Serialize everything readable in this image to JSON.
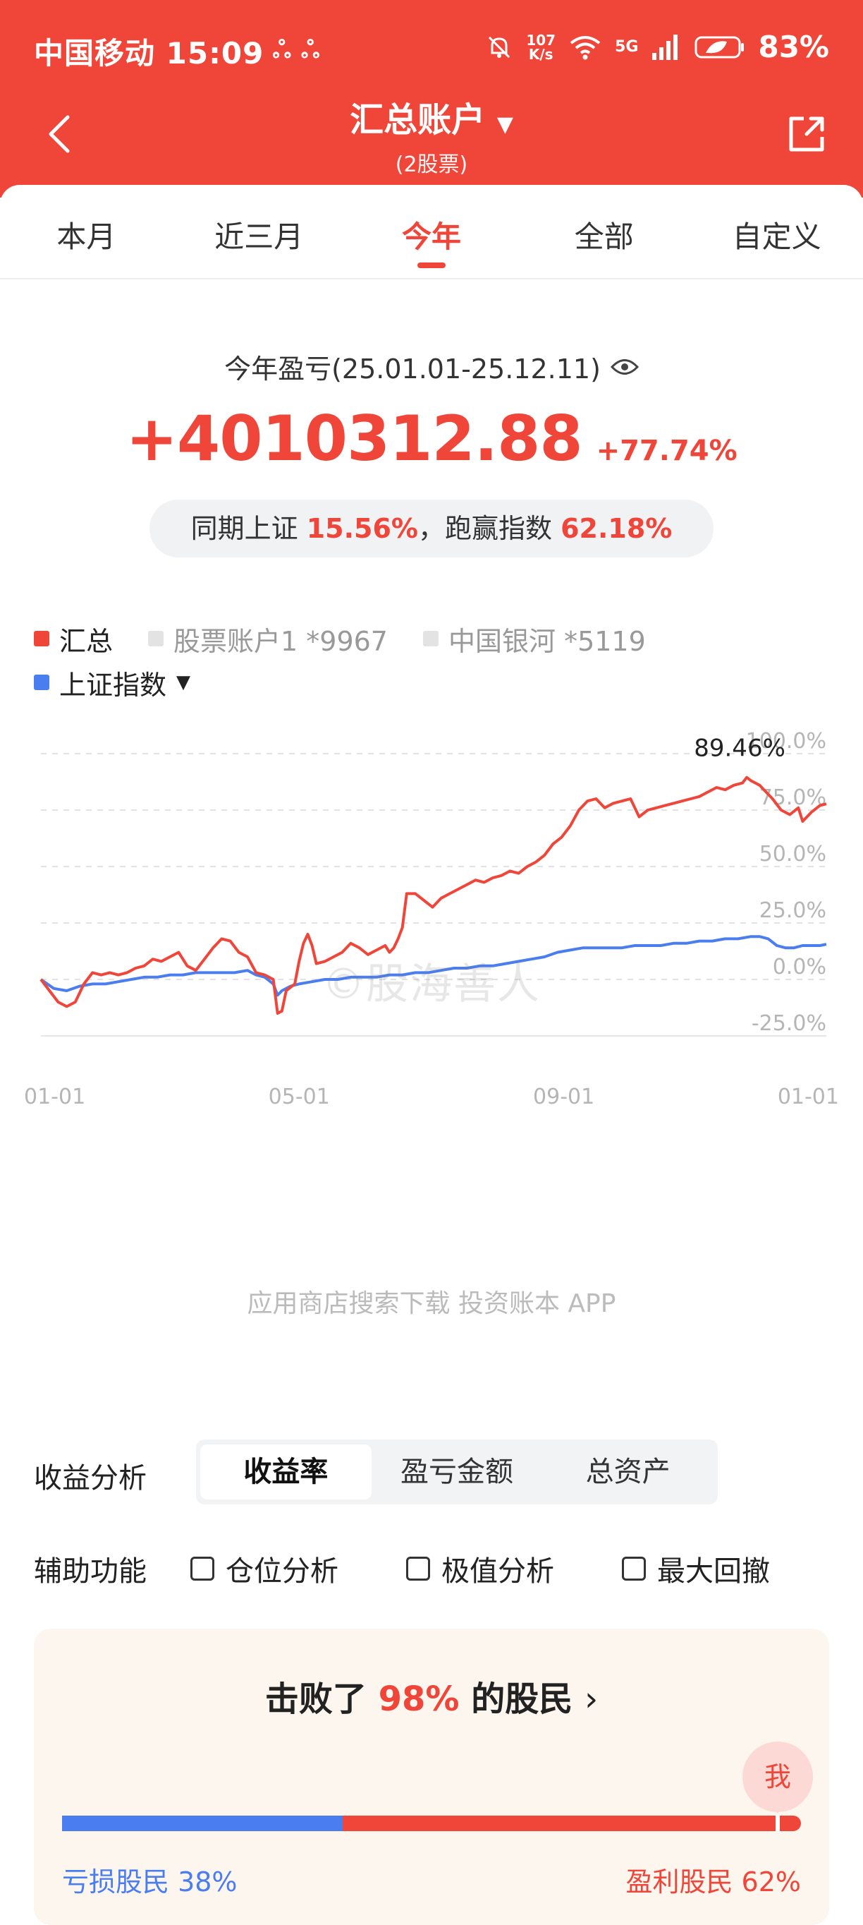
{
  "status": {
    "carrier_time": "中国移动 15:09",
    "speed_top": "107",
    "speed_bottom": "K/s",
    "network": "5G",
    "battery": "83%"
  },
  "nav": {
    "title": "汇总账户",
    "subtitle": "(2股票)"
  },
  "tabs": [
    {
      "label": "本月",
      "active": false
    },
    {
      "label": "近三月",
      "active": false
    },
    {
      "label": "今年",
      "active": true
    },
    {
      "label": "全部",
      "active": false
    },
    {
      "label": "自定义",
      "active": false
    }
  ],
  "summary": {
    "period_label": "今年盈亏(25.01.01-25.12.11)",
    "amount": "+4010312.88",
    "percent": "+77.74%",
    "compare_prefix": "同期上证",
    "compare_index": "15.56%",
    "compare_mid": "，跑赢指数",
    "compare_beat": "62.18%"
  },
  "legend": {
    "items": [
      {
        "label": "汇总",
        "color": "#f0463a",
        "active": true
      },
      {
        "label": "股票账户1 *9967",
        "color": "#e3e3e3",
        "active": false
      },
      {
        "label": "中国银河 *5119",
        "color": "#e3e3e3",
        "active": false
      }
    ],
    "index_label": "上证指数",
    "index_color": "#4a7ef0"
  },
  "chart_data": {
    "type": "line",
    "x_ticks": [
      "01-01",
      "05-01",
      "09-01",
      "01-01"
    ],
    "y_ticks": [
      "100.0%",
      "75.0%",
      "50.0%",
      "25.0%",
      "0.0%",
      "-25.0%"
    ],
    "ylim": [
      -25,
      100
    ],
    "xlim": [
      0,
      365
    ],
    "peak_label": "89.46%",
    "series": [
      {
        "name": "汇总",
        "color": "#f0463a",
        "points": [
          [
            0,
            0
          ],
          [
            4,
            -5
          ],
          [
            8,
            -10
          ],
          [
            12,
            -12
          ],
          [
            16,
            -10
          ],
          [
            20,
            -2
          ],
          [
            24,
            3
          ],
          [
            28,
            2
          ],
          [
            32,
            3
          ],
          [
            36,
            2
          ],
          [
            40,
            3
          ],
          [
            44,
            5
          ],
          [
            48,
            6
          ],
          [
            52,
            9
          ],
          [
            56,
            8
          ],
          [
            60,
            10
          ],
          [
            64,
            12
          ],
          [
            68,
            6
          ],
          [
            72,
            4
          ],
          [
            76,
            9
          ],
          [
            80,
            14
          ],
          [
            84,
            18
          ],
          [
            88,
            17
          ],
          [
            92,
            12
          ],
          [
            96,
            10
          ],
          [
            100,
            3
          ],
          [
            104,
            2
          ],
          [
            108,
            0
          ],
          [
            110,
            -15
          ],
          [
            112,
            -14
          ],
          [
            114,
            -5
          ],
          [
            118,
            -2
          ],
          [
            120,
            8
          ],
          [
            122,
            16
          ],
          [
            124,
            20
          ],
          [
            126,
            15
          ],
          [
            128,
            7
          ],
          [
            132,
            8
          ],
          [
            136,
            10
          ],
          [
            140,
            12
          ],
          [
            144,
            16
          ],
          [
            148,
            14
          ],
          [
            152,
            11
          ],
          [
            156,
            13
          ],
          [
            160,
            15
          ],
          [
            162,
            12
          ],
          [
            164,
            14
          ],
          [
            166,
            18
          ],
          [
            168,
            23
          ],
          [
            170,
            38
          ],
          [
            174,
            38
          ],
          [
            178,
            35
          ],
          [
            182,
            32
          ],
          [
            186,
            36
          ],
          [
            190,
            38
          ],
          [
            194,
            40
          ],
          [
            198,
            42
          ],
          [
            202,
            44
          ],
          [
            206,
            43
          ],
          [
            210,
            45
          ],
          [
            214,
            46
          ],
          [
            218,
            48
          ],
          [
            222,
            47
          ],
          [
            226,
            50
          ],
          [
            230,
            52
          ],
          [
            234,
            55
          ],
          [
            238,
            60
          ],
          [
            242,
            63
          ],
          [
            246,
            68
          ],
          [
            250,
            75
          ],
          [
            254,
            79
          ],
          [
            258,
            80
          ],
          [
            262,
            76
          ],
          [
            266,
            78
          ],
          [
            270,
            79
          ],
          [
            274,
            80
          ],
          [
            278,
            72
          ],
          [
            282,
            75
          ],
          [
            286,
            76
          ],
          [
            290,
            77
          ],
          [
            294,
            78
          ],
          [
            298,
            79
          ],
          [
            302,
            80
          ],
          [
            306,
            81
          ],
          [
            310,
            83
          ],
          [
            314,
            85
          ],
          [
            318,
            84
          ],
          [
            322,
            86
          ],
          [
            326,
            87
          ],
          [
            328,
            89.46
          ],
          [
            330,
            88
          ],
          [
            334,
            86
          ],
          [
            336,
            84
          ],
          [
            340,
            80
          ],
          [
            344,
            75
          ],
          [
            348,
            73
          ],
          [
            352,
            76
          ],
          [
            354,
            70
          ],
          [
            358,
            74
          ],
          [
            362,
            77
          ],
          [
            365,
            77.74
          ]
        ]
      },
      {
        "name": "上证指数",
        "color": "#4a7ef0",
        "points": [
          [
            0,
            0
          ],
          [
            6,
            -4
          ],
          [
            12,
            -5
          ],
          [
            18,
            -3
          ],
          [
            24,
            -2
          ],
          [
            30,
            -2
          ],
          [
            36,
            -1
          ],
          [
            42,
            0
          ],
          [
            48,
            1
          ],
          [
            54,
            1
          ],
          [
            60,
            2
          ],
          [
            66,
            2
          ],
          [
            72,
            3
          ],
          [
            78,
            3
          ],
          [
            84,
            3
          ],
          [
            90,
            3
          ],
          [
            96,
            4
          ],
          [
            100,
            2
          ],
          [
            104,
            1
          ],
          [
            108,
            -2
          ],
          [
            110,
            -7
          ],
          [
            112,
            -5
          ],
          [
            116,
            -3
          ],
          [
            120,
            -2
          ],
          [
            126,
            -1
          ],
          [
            132,
            0
          ],
          [
            138,
            0
          ],
          [
            144,
            1
          ],
          [
            150,
            1
          ],
          [
            156,
            1
          ],
          [
            162,
            2
          ],
          [
            168,
            2
          ],
          [
            174,
            3
          ],
          [
            180,
            3
          ],
          [
            186,
            4
          ],
          [
            192,
            5
          ],
          [
            198,
            5
          ],
          [
            204,
            6
          ],
          [
            210,
            6
          ],
          [
            216,
            7
          ],
          [
            222,
            8
          ],
          [
            228,
            9
          ],
          [
            234,
            10
          ],
          [
            240,
            12
          ],
          [
            246,
            13
          ],
          [
            252,
            14
          ],
          [
            258,
            14
          ],
          [
            264,
            14
          ],
          [
            270,
            14
          ],
          [
            276,
            15
          ],
          [
            282,
            15
          ],
          [
            288,
            15
          ],
          [
            294,
            16
          ],
          [
            300,
            16
          ],
          [
            306,
            17
          ],
          [
            312,
            17
          ],
          [
            318,
            18
          ],
          [
            324,
            18
          ],
          [
            330,
            19
          ],
          [
            334,
            19
          ],
          [
            338,
            18
          ],
          [
            342,
            15
          ],
          [
            346,
            14
          ],
          [
            350,
            14
          ],
          [
            354,
            15
          ],
          [
            358,
            15
          ],
          [
            362,
            15
          ],
          [
            365,
            15.56
          ]
        ]
      }
    ]
  },
  "watermark": "©股海善人",
  "promo_text": "应用商店搜索下载 投资账本 APP",
  "analysis": {
    "label": "收益分析",
    "options": [
      {
        "label": "收益率",
        "active": true
      },
      {
        "label": "盈亏金额",
        "active": false
      },
      {
        "label": "总资产",
        "active": false
      }
    ]
  },
  "aux": {
    "label": "辅助功能",
    "options": [
      "仓位分析",
      "极值分析",
      "最大回撤"
    ]
  },
  "beat": {
    "prefix": "击败了",
    "pct": "98%",
    "suffix": "的股民",
    "me": "我",
    "loss_label": "亏损股民 38%",
    "loss_ratio": 0.38,
    "profit_label": "盈利股民 62%",
    "loss_color": "#4a7ef0",
    "profit_color": "#f0463a"
  }
}
